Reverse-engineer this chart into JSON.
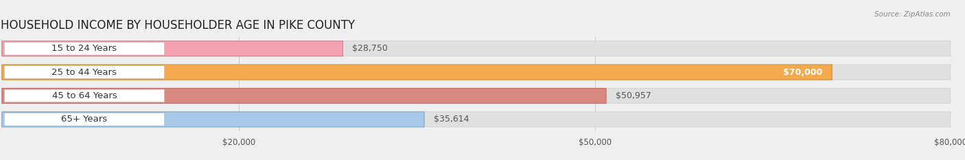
{
  "title": "HOUSEHOLD INCOME BY HOUSEHOLDER AGE IN PIKE COUNTY",
  "source": "Source: ZipAtlas.com",
  "categories": [
    "15 to 24 Years",
    "25 to 44 Years",
    "45 to 64 Years",
    "65+ Years"
  ],
  "values": [
    28750,
    70000,
    50957,
    35614
  ],
  "bar_colors": [
    "#f4a0b0",
    "#f5a94e",
    "#d98880",
    "#a8c8e8"
  ],
  "bar_edge_colors": [
    "#d08090",
    "#d09030",
    "#c07070",
    "#80a8cc"
  ],
  "value_labels": [
    "$28,750",
    "$70,000",
    "$50,957",
    "$35,614"
  ],
  "value_inside": [
    false,
    true,
    false,
    false
  ],
  "xlim": [
    0,
    80000
  ],
  "xticks": [
    20000,
    50000,
    80000
  ],
  "xticklabels": [
    "$20,000",
    "$50,000",
    "$80,000"
  ],
  "background_color": "#efefef",
  "bar_bg_color": "#e0e0e0",
  "bar_bg_edge_color": "#cccccc",
  "title_fontsize": 12,
  "label_fontsize": 9.5,
  "value_fontsize": 9,
  "axis_fontsize": 8.5
}
